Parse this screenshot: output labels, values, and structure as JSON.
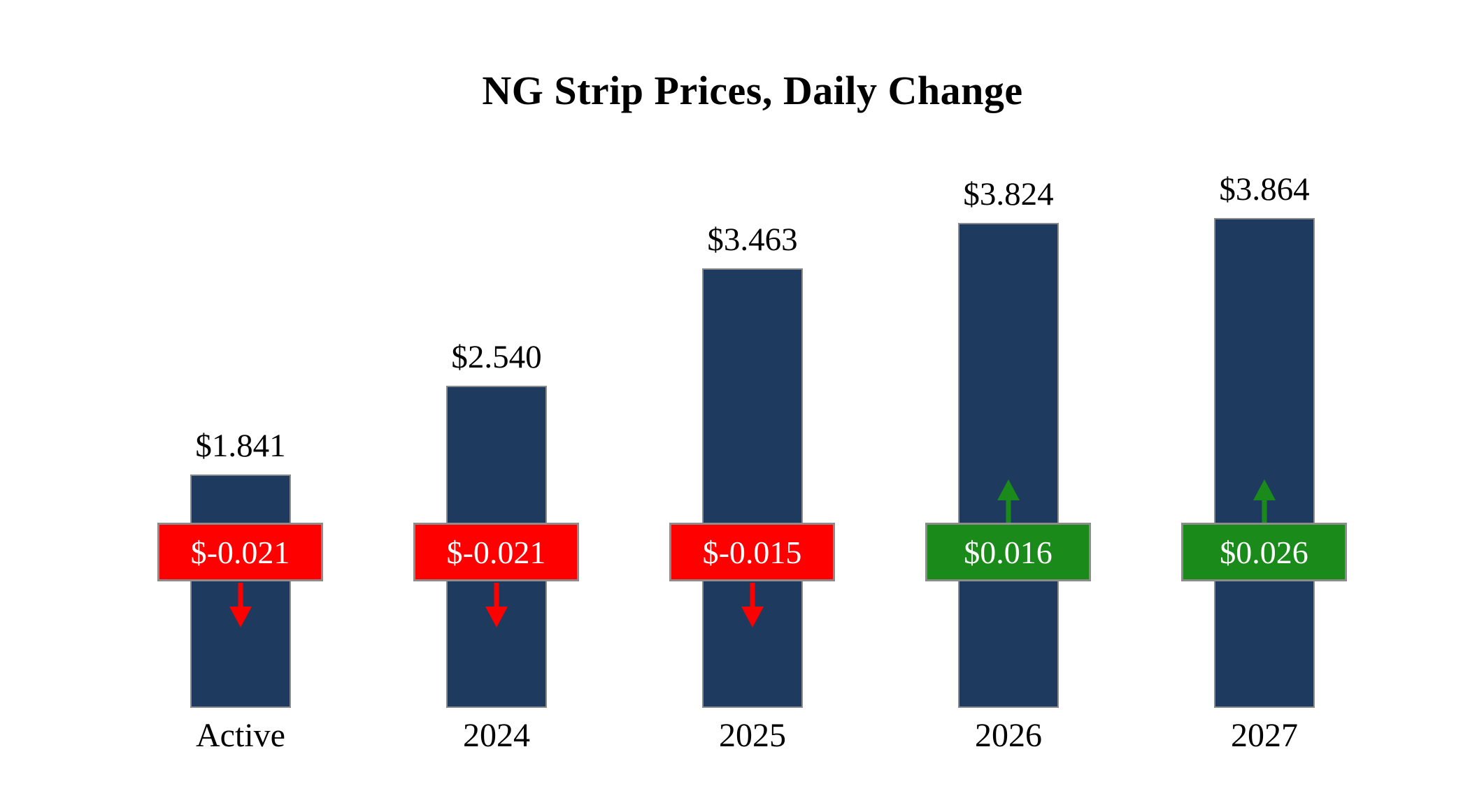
{
  "title": "NG Strip Prices, Daily Change",
  "chart_data": {
    "type": "bar",
    "title": "NG Strip Prices, Daily Change",
    "categories": [
      "Active",
      "2024",
      "2025",
      "2026",
      "2027"
    ],
    "values": [
      1.841,
      2.54,
      3.463,
      3.824,
      3.864
    ],
    "value_labels": [
      "$1.841",
      "$2.540",
      "$3.463",
      "$3.824",
      "$3.864"
    ],
    "changes": [
      -0.021,
      -0.021,
      -0.015,
      0.016,
      0.026
    ],
    "change_labels": [
      "$-0.021",
      "$-0.021",
      "$-0.015",
      "$0.016",
      "$0.026"
    ],
    "change_directions": [
      "down",
      "down",
      "down",
      "up",
      "up"
    ],
    "xlabel": "",
    "ylabel": "",
    "ylim": [
      0,
      4.2
    ],
    "grid": false,
    "legend": "none",
    "colors": {
      "bar": "#1e3a5f",
      "negative": "#fe0000",
      "positive": "#1a8a1a",
      "badge_border": "#8c8c8c",
      "badge_text": "#ffffff",
      "label_text": "#000000"
    }
  }
}
